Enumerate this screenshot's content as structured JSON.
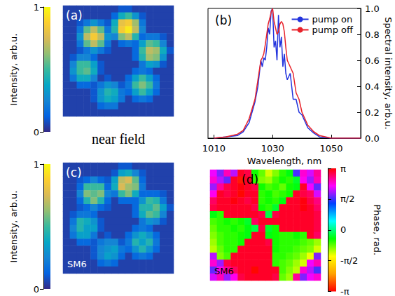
{
  "chart_data": [
    {
      "type": "heatmap",
      "title": "(a)",
      "color": "parula",
      "tick_labels": false,
      "annotations": [
        "near field"
      ],
      "colorbar": {
        "label": "Intensity, arb.u.",
        "range": [
          0,
          1
        ],
        "ticks": [
          0,
          1
        ]
      },
      "cells": [
        [
          0.05,
          0.05,
          0.05,
          0.05,
          0.05,
          0.05,
          0.05,
          0.05,
          0.1,
          0.1,
          0.05,
          0.05,
          0.05,
          0.05,
          0.05,
          0.05
        ],
        [
          0.05,
          0.05,
          0.05,
          0.05,
          0.05,
          0.05,
          0.05,
          0.15,
          0.4,
          0.5,
          0.3,
          0.1,
          0.05,
          0.05,
          0.05,
          0.05
        ],
        [
          0.05,
          0.05,
          0.1,
          0.2,
          0.3,
          0.2,
          0.1,
          0.4,
          0.8,
          0.85,
          0.65,
          0.2,
          0.05,
          0.05,
          0.05,
          0.05
        ],
        [
          0.05,
          0.05,
          0.2,
          0.55,
          0.7,
          0.55,
          0.2,
          0.45,
          0.85,
          0.95,
          0.7,
          0.25,
          0.05,
          0.05,
          0.05,
          0.05
        ],
        [
          0.05,
          0.05,
          0.3,
          0.7,
          0.85,
          0.7,
          0.3,
          0.25,
          0.6,
          0.7,
          0.45,
          0.15,
          0.2,
          0.2,
          0.1,
          0.05
        ],
        [
          0.05,
          0.05,
          0.2,
          0.55,
          0.7,
          0.55,
          0.2,
          0.05,
          0.15,
          0.2,
          0.15,
          0.35,
          0.55,
          0.5,
          0.25,
          0.05
        ],
        [
          0.05,
          0.05,
          0.1,
          0.2,
          0.3,
          0.2,
          0.1,
          0.05,
          0.05,
          0.05,
          0.15,
          0.5,
          0.7,
          0.65,
          0.4,
          0.1
        ],
        [
          0.05,
          0.1,
          0.25,
          0.25,
          0.15,
          0.05,
          0.05,
          0.05,
          0.05,
          0.05,
          0.15,
          0.45,
          0.65,
          0.6,
          0.3,
          0.05
        ],
        [
          0.05,
          0.25,
          0.5,
          0.5,
          0.35,
          0.1,
          0.05,
          0.05,
          0.05,
          0.05,
          0.05,
          0.2,
          0.35,
          0.3,
          0.1,
          0.05
        ],
        [
          0.05,
          0.3,
          0.5,
          0.55,
          0.4,
          0.1,
          0.05,
          0.05,
          0.05,
          0.05,
          0.15,
          0.2,
          0.15,
          0.05,
          0.05,
          0.05
        ],
        [
          0.05,
          0.2,
          0.4,
          0.4,
          0.25,
          0.05,
          0.1,
          0.05,
          0.05,
          0.15,
          0.35,
          0.5,
          0.35,
          0.15,
          0.05,
          0.05
        ],
        [
          0.05,
          0.05,
          0.15,
          0.15,
          0.1,
          0.2,
          0.3,
          0.25,
          0.1,
          0.2,
          0.5,
          0.6,
          0.5,
          0.2,
          0.05,
          0.05
        ],
        [
          0.05,
          0.05,
          0.05,
          0.05,
          0.1,
          0.3,
          0.45,
          0.4,
          0.2,
          0.15,
          0.35,
          0.5,
          0.35,
          0.15,
          0.05,
          0.05
        ],
        [
          0.05,
          0.05,
          0.05,
          0.05,
          0.1,
          0.3,
          0.4,
          0.35,
          0.2,
          0.05,
          0.15,
          0.2,
          0.15,
          0.05,
          0.05,
          0.05
        ],
        [
          0.05,
          0.05,
          0.05,
          0.05,
          0.05,
          0.15,
          0.2,
          0.2,
          0.05,
          0.05,
          0.05,
          0.05,
          0.05,
          0.05,
          0.05,
          0.05
        ],
        [
          0.05,
          0.05,
          0.05,
          0.05,
          0.05,
          0.05,
          0.05,
          0.05,
          0.05,
          0.05,
          0.05,
          0.05,
          0.05,
          0.05,
          0.05,
          0.05
        ]
      ]
    },
    {
      "type": "line",
      "title": "(b)",
      "xlabel": "Wavelength, nm",
      "ylabel": "Spectral intensity, arb.u.",
      "xlim": [
        1008,
        1060
      ],
      "ylim": [
        0,
        1
      ],
      "xticks": [
        1010,
        1030,
        1050
      ],
      "yticks": [
        {
          "value": 0,
          "label": "0.0"
        },
        {
          "value": 0.2,
          "label": "0.2"
        },
        {
          "value": 0.4,
          "label": "0.4"
        },
        {
          "value": 0.6,
          "label": "0.6"
        },
        {
          "value": 0.8,
          "label": "0.8"
        },
        {
          "value": 1,
          "label": "1.0"
        }
      ],
      "grid": false,
      "legend": "upper right",
      "x": [
        1010,
        1014,
        1018,
        1020,
        1022,
        1024,
        1025,
        1026,
        1026.5,
        1027,
        1027.5,
        1028,
        1028.5,
        1029,
        1029.5,
        1030,
        1030.5,
        1031,
        1031.5,
        1032,
        1032.5,
        1033,
        1033.5,
        1034,
        1034.5,
        1035,
        1036,
        1037,
        1038,
        1039,
        1040,
        1042,
        1044,
        1046,
        1050,
        1055,
        1060
      ],
      "series": [
        {
          "name": "pump on",
          "color": "#2233dd",
          "values": [
            0,
            0.01,
            0.02,
            0.05,
            0.12,
            0.28,
            0.4,
            0.6,
            0.55,
            0.62,
            0.6,
            0.7,
            0.85,
            0.8,
            0.98,
            1.0,
            0.7,
            0.75,
            0.6,
            0.95,
            0.7,
            0.78,
            0.55,
            0.65,
            0.5,
            0.45,
            0.5,
            0.3,
            0.3,
            0.2,
            0.18,
            0.08,
            0.04,
            0.01,
            0,
            0,
            0
          ]
        },
        {
          "name": "pump off",
          "color": "#e8222a",
          "values": [
            0,
            0.01,
            0.03,
            0.06,
            0.15,
            0.3,
            0.45,
            0.6,
            0.62,
            0.65,
            0.72,
            0.8,
            0.88,
            0.92,
            0.97,
            1.0,
            0.9,
            0.85,
            0.8,
            0.82,
            0.88,
            0.9,
            0.88,
            0.82,
            0.7,
            0.6,
            0.55,
            0.5,
            0.35,
            0.3,
            0.2,
            0.1,
            0.05,
            0.02,
            0,
            0,
            0
          ]
        }
      ]
    },
    {
      "type": "heatmap",
      "title": "(c)",
      "color": "parula",
      "tick_labels": false,
      "annotations": [
        "SM6"
      ],
      "colorbar": {
        "label": "Intensity, arb.u.",
        "range": [
          0,
          1
        ],
        "ticks": [
          0,
          1
        ]
      },
      "cells": [
        [
          0.05,
          0.05,
          0.05,
          0.05,
          0.05,
          0.05,
          0.05,
          0.05,
          0.1,
          0.1,
          0.05,
          0.05,
          0.05,
          0.05,
          0.05,
          0.05
        ],
        [
          0.05,
          0.05,
          0.05,
          0.05,
          0.05,
          0.05,
          0.05,
          0.1,
          0.35,
          0.4,
          0.25,
          0.1,
          0.05,
          0.05,
          0.05,
          0.05
        ],
        [
          0.05,
          0.05,
          0.1,
          0.15,
          0.25,
          0.15,
          0.1,
          0.35,
          0.7,
          0.75,
          0.55,
          0.15,
          0.05,
          0.05,
          0.05,
          0.05
        ],
        [
          0.05,
          0.05,
          0.15,
          0.5,
          0.5,
          0.5,
          0.15,
          0.4,
          0.75,
          0.65,
          0.6,
          0.2,
          0.05,
          0.05,
          0.05,
          0.05
        ],
        [
          0.05,
          0.05,
          0.25,
          0.6,
          0.55,
          0.6,
          0.25,
          0.2,
          0.5,
          0.6,
          0.4,
          0.15,
          0.15,
          0.15,
          0.1,
          0.05
        ],
        [
          0.05,
          0.05,
          0.15,
          0.45,
          0.6,
          0.45,
          0.15,
          0.05,
          0.15,
          0.15,
          0.15,
          0.3,
          0.5,
          0.45,
          0.2,
          0.05
        ],
        [
          0.05,
          0.05,
          0.1,
          0.15,
          0.25,
          0.15,
          0.1,
          0.05,
          0.05,
          0.05,
          0.15,
          0.45,
          0.45,
          0.55,
          0.35,
          0.1
        ],
        [
          0.05,
          0.1,
          0.2,
          0.2,
          0.15,
          0.05,
          0.05,
          0.05,
          0.05,
          0.05,
          0.15,
          0.4,
          0.55,
          0.5,
          0.25,
          0.05
        ],
        [
          0.05,
          0.2,
          0.45,
          0.4,
          0.3,
          0.1,
          0.05,
          0.05,
          0.05,
          0.05,
          0.05,
          0.2,
          0.3,
          0.25,
          0.1,
          0.05
        ],
        [
          0.05,
          0.25,
          0.45,
          0.35,
          0.35,
          0.1,
          0.05,
          0.05,
          0.05,
          0.05,
          0.15,
          0.2,
          0.15,
          0.05,
          0.05,
          0.05
        ],
        [
          0.05,
          0.2,
          0.35,
          0.35,
          0.2,
          0.05,
          0.1,
          0.05,
          0.05,
          0.15,
          0.3,
          0.4,
          0.3,
          0.15,
          0.05,
          0.05
        ],
        [
          0.05,
          0.05,
          0.15,
          0.15,
          0.1,
          0.2,
          0.25,
          0.25,
          0.1,
          0.2,
          0.45,
          0.35,
          0.45,
          0.2,
          0.05,
          0.05
        ],
        [
          0.05,
          0.05,
          0.05,
          0.05,
          0.1,
          0.25,
          0.3,
          0.35,
          0.2,
          0.15,
          0.3,
          0.45,
          0.3,
          0.15,
          0.05,
          0.05
        ],
        [
          0.05,
          0.05,
          0.05,
          0.05,
          0.1,
          0.25,
          0.35,
          0.3,
          0.15,
          0.05,
          0.15,
          0.2,
          0.15,
          0.05,
          0.05,
          0.05
        ],
        [
          0.05,
          0.05,
          0.05,
          0.05,
          0.05,
          0.15,
          0.2,
          0.15,
          0.05,
          0.05,
          0.05,
          0.05,
          0.05,
          0.05,
          0.05,
          0.05
        ],
        [
          0.05,
          0.05,
          0.05,
          0.05,
          0.05,
          0.05,
          0.05,
          0.05,
          0.05,
          0.05,
          0.05,
          0.05,
          0.05,
          0.05,
          0.05,
          0.05
        ]
      ]
    },
    {
      "type": "heatmap",
      "title": "(d)",
      "color": "hsv",
      "tick_labels": false,
      "annotations": [
        "SM6"
      ],
      "colorbar": {
        "label": "Phase, rad.",
        "range": [
          -3.1416,
          3.1416
        ],
        "ticks": [
          {
            "value": 3.1416,
            "label": "π"
          },
          {
            "value": 1.5708,
            "label": "π/2"
          },
          0,
          {
            "value": -1.5708,
            "label": "-π/2"
          },
          {
            "value": -3.1416,
            "label": "-π"
          }
        ]
      },
      "cells": [
        [
          2.2,
          1.8,
          2.5,
          2.0,
          3.0,
          2.9,
          -0.5,
          -0.8,
          -1.2,
          -0.9,
          -0.6,
          -0.4,
          1.6,
          2.4,
          2.1,
          2.6
        ],
        [
          2.4,
          2.0,
          1.7,
          3.0,
          -3.0,
          3.0,
          -0.6,
          -0.9,
          -1.0,
          -0.7,
          -0.5,
          -0.6,
          -0.3,
          2.3,
          1.9,
          2.5
        ],
        [
          1.9,
          2.6,
          2.9,
          3.0,
          3.1,
          3.0,
          2.9,
          -0.5,
          -0.7,
          -0.6,
          -0.8,
          -0.5,
          -0.4,
          3.0,
          2.2,
          1.7
        ],
        [
          2.3,
          3.0,
          2.9,
          3.0,
          -3.1,
          3.0,
          3.0,
          -0.6,
          -0.5,
          -0.7,
          -0.6,
          -0.5,
          3.0,
          2.9,
          2.8,
          2.1
        ],
        [
          2.8,
          3.0,
          3.0,
          3.1,
          3.0,
          2.9,
          3.0,
          -0.6,
          -0.5,
          -0.6,
          -0.4,
          3.0,
          3.0,
          3.1,
          2.9,
          2.7
        ],
        [
          2.9,
          3.0,
          3.0,
          3.0,
          3.0,
          3.0,
          2.9,
          -0.5,
          -0.6,
          -0.3,
          3.0,
          3.0,
          3.0,
          3.1,
          3.0,
          2.8
        ],
        [
          -0.4,
          -0.6,
          3.0,
          3.0,
          3.0,
          3.0,
          3.0,
          2.9,
          -0.2,
          2.9,
          3.0,
          3.0,
          3.0,
          3.0,
          3.0,
          2.9
        ],
        [
          -0.7,
          -0.6,
          -0.5,
          -0.6,
          -0.5,
          -0.3,
          2.8,
          3.0,
          3.0,
          3.0,
          3.0,
          3.0,
          3.0,
          3.0,
          3.0,
          2.9
        ],
        [
          -0.8,
          -0.6,
          -0.6,
          -0.5,
          -0.6,
          -0.4,
          -0.2,
          2.9,
          -0.3,
          -0.5,
          3.0,
          3.0,
          3.0,
          3.0,
          3.0,
          2.9
        ],
        [
          -0.9,
          -0.7,
          -0.6,
          -0.6,
          -0.5,
          -0.4,
          3.0,
          3.0,
          -0.4,
          -0.5,
          -0.6,
          -0.6,
          -0.5,
          -0.6,
          3.0,
          2.8
        ],
        [
          -1.0,
          -0.7,
          -0.6,
          -0.6,
          -0.5,
          3.0,
          3.0,
          3.0,
          2.9,
          -0.5,
          -0.6,
          -0.6,
          -0.6,
          -0.7,
          -0.8,
          -1.0
        ],
        [
          -1.1,
          -0.8,
          -0.6,
          -0.6,
          3.0,
          3.0,
          3.0,
          3.0,
          3.0,
          -0.5,
          -0.6,
          -0.6,
          -0.7,
          -0.8,
          -0.9,
          -1.2
        ],
        [
          2.0,
          -0.9,
          -0.7,
          3.0,
          3.0,
          3.0,
          3.0,
          3.0,
          3.0,
          -0.6,
          -0.6,
          -0.7,
          -0.8,
          -1.0,
          -1.3,
          1.8
        ],
        [
          2.4,
          1.9,
          2.9,
          3.0,
          3.0,
          3.0,
          3.0,
          3.0,
          3.0,
          -0.6,
          -0.7,
          -0.8,
          -1.0,
          -1.2,
          2.2,
          2.5
        ],
        [
          1.7,
          2.3,
          2.6,
          2.8,
          3.0,
          3.0,
          -3.1,
          3.0,
          3.0,
          3.0,
          -0.7,
          -0.9,
          -1.1,
          2.4,
          2.0,
          1.6
        ],
        [
          2.1,
          2.5,
          1.9,
          2.3,
          2.9,
          3.0,
          3.0,
          3.0,
          3.0,
          2.9,
          -0.8,
          -1.0,
          2.6,
          1.8,
          2.2,
          2.4
        ]
      ]
    }
  ]
}
